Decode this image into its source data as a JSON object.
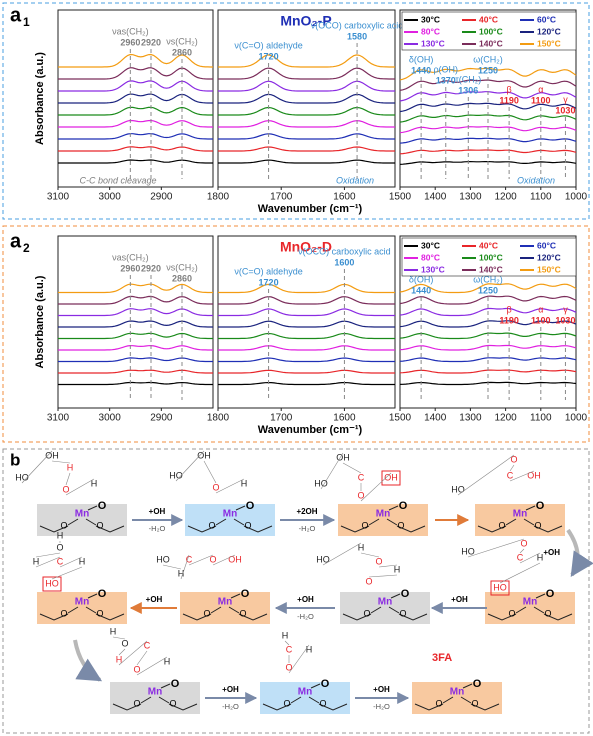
{
  "figure_a1": {
    "label": "a",
    "label_sub": "1",
    "title": "MnO₂-P",
    "y_label": "Absorbance (a.u.)",
    "x_label": "Wavenumber (cm⁻¹)",
    "legend": [
      {
        "name": "30°C",
        "color": "#000000"
      },
      {
        "name": "40°C",
        "color": "#e8262a"
      },
      {
        "name": "60°C",
        "color": "#1f2fb5"
      },
      {
        "name": "80°C",
        "color": "#e020e0"
      },
      {
        "name": "100°C",
        "color": "#1a8a1a"
      },
      {
        "name": "120°C",
        "color": "#1a237e"
      },
      {
        "name": "130°C",
        "color": "#8a2be2"
      },
      {
        "name": "140°C",
        "color": "#7b2d5b"
      },
      {
        "name": "150°C",
        "color": "#f39c12"
      }
    ],
    "panels": [
      {
        "xlim": [
          3100,
          2800
        ],
        "xticks": [
          3100,
          3000,
          2900
        ],
        "note": "C-C bond cleavage",
        "note_color": "#7f7f7f",
        "peaks": [
          {
            "name": "νas(CH₂)",
            "value": 2960,
            "color": "#7f7f7f"
          },
          {
            "value": 2920,
            "color": "#7f7f7f"
          },
          {
            "name": "νs(CH₂)",
            "value": 2860,
            "color": "#7f7f7f"
          }
        ]
      },
      {
        "xlim": [
          1800,
          1520
        ],
        "xticks": [
          1800,
          1700,
          1600
        ],
        "note": "Oxidation",
        "note_color": "#3b8fd0",
        "peaks": [
          {
            "name": "ν(C=O) aldehyde",
            "value": 1720,
            "color": "#3b8fd0"
          },
          {
            "name": "ν(OCO) carboxylic acid",
            "value": 1580,
            "color": "#3b8fd0"
          }
        ]
      },
      {
        "xlim": [
          1500,
          1000
        ],
        "xticks": [
          1500,
          1400,
          1300,
          1200,
          1100,
          1000
        ],
        "note": "Oxidation",
        "note_color": "#3b8fd0",
        "peaks": [
          {
            "name": "δ(OH)",
            "value": 1440,
            "color": "#3b8fd0"
          },
          {
            "name": "ρ(OH)",
            "value": 1370,
            "color": "#3b8fd0"
          },
          {
            "name": "τ(CH₂)",
            "value": 1306,
            "color": "#3b8fd0"
          },
          {
            "name": "ω(CH₂)",
            "value": 1250,
            "color": "#3b8fd0"
          },
          {
            "name": "β",
            "value": 1190,
            "color": "#e8262a"
          },
          {
            "name": "α",
            "value": 1100,
            "color": "#e8262a"
          },
          {
            "name": "γ",
            "value": 1030,
            "color": "#e8262a"
          }
        ]
      }
    ]
  },
  "figure_a2": {
    "label": "a",
    "label_sub": "2",
    "title": "MnO₂-D",
    "y_label": "Absorbance (a.u.)",
    "x_label": "Wavenumber (cm⁻¹)",
    "legend": [
      {
        "name": "30°C",
        "color": "#000000"
      },
      {
        "name": "40°C",
        "color": "#e8262a"
      },
      {
        "name": "60°C",
        "color": "#1f2fb5"
      },
      {
        "name": "80°C",
        "color": "#e020e0"
      },
      {
        "name": "100°C",
        "color": "#1a8a1a"
      },
      {
        "name": "120°C",
        "color": "#1a237e"
      },
      {
        "name": "130°C",
        "color": "#8a2be2"
      },
      {
        "name": "140°C",
        "color": "#7b2d5b"
      },
      {
        "name": "150°C",
        "color": "#f39c12"
      }
    ],
    "panels": [
      {
        "xlim": [
          3100,
          2800
        ],
        "xticks": [
          3100,
          3000,
          2900
        ],
        "peaks": [
          {
            "name": "νas(CH₂)",
            "value": 2960,
            "color": "#7f7f7f"
          },
          {
            "value": 2920,
            "color": "#7f7f7f"
          },
          {
            "name": "νs(CH₂)",
            "value": 2860,
            "color": "#7f7f7f"
          }
        ]
      },
      {
        "xlim": [
          1800,
          1520
        ],
        "xticks": [
          1800,
          1700,
          1600
        ],
        "peaks": [
          {
            "name": "ν(C=O) aldehyde",
            "value": 1720,
            "color": "#3b8fd0"
          },
          {
            "name": "ν(OCO) carboxylic acid",
            "value": 1600,
            "color": "#3b8fd0"
          }
        ]
      },
      {
        "xlim": [
          1500,
          1000
        ],
        "xticks": [
          1500,
          1400,
          1300,
          1200,
          1100,
          1000
        ],
        "peaks": [
          {
            "name": "δ(OH)",
            "value": 1440,
            "color": "#3b8fd0"
          },
          {
            "name": "ω(CH₂)",
            "value": 1250,
            "color": "#3b8fd0"
          },
          {
            "name": "β",
            "value": 1190,
            "color": "#e8262a"
          },
          {
            "name": "α",
            "value": 1100,
            "color": "#e8262a"
          },
          {
            "name": "γ",
            "value": 1030,
            "color": "#e8262a"
          }
        ]
      }
    ]
  },
  "figure_b": {
    "label": "b",
    "product": "3FA",
    "intermediates": [
      {
        "color": "#d9d9d9",
        "metal": "Mn",
        "oxo": "O",
        "surface": [
          "O",
          "O"
        ],
        "atoms": [
          "HO",
          "OH",
          "H",
          "O",
          "H"
        ]
      },
      {
        "color": "#bfe0f7",
        "metal": "Mn",
        "oxo": "O",
        "surface": [
          "O",
          "O"
        ],
        "atoms": [
          "HO",
          "OH",
          "O",
          "H"
        ]
      },
      {
        "color": "#f8c9a0",
        "metal": "Mn",
        "oxo": "O",
        "surface": [
          "O",
          "O"
        ],
        "atoms": [
          "HO",
          "OH",
          "C",
          "O",
          "OH"
        ]
      },
      {
        "color": "#f8c9a0",
        "metal": "Mn",
        "oxo": "O",
        "surface": [
          "O",
          "O"
        ],
        "atoms": [
          "HO",
          "O",
          "C",
          "OH"
        ]
      },
      {
        "color": "#f8c9a0",
        "metal": "Mn",
        "oxo": "O",
        "surface": [
          "O",
          "O"
        ],
        "atoms": [
          "HO",
          "O",
          "C",
          "H",
          "HO"
        ]
      },
      {
        "color": "#d9d9d9",
        "metal": "Mn",
        "oxo": "O",
        "surface": [
          "O",
          "O"
        ],
        "atoms": [
          "HO",
          "H",
          "O",
          "H",
          "O"
        ]
      },
      {
        "color": "#f8c9a0",
        "metal": "Mn",
        "oxo": "O",
        "surface": [
          "O",
          "O"
        ],
        "atoms": [
          "HO",
          "H",
          "C",
          "O",
          "OH"
        ]
      },
      {
        "color": "#f8c9a0",
        "metal": "Mn",
        "oxo": "O",
        "surface": [
          "O",
          "O"
        ],
        "atoms": [
          "H",
          "O",
          "H",
          "C",
          "H",
          "HO"
        ]
      },
      {
        "color": "#d9d9d9",
        "metal": "Mn",
        "oxo": "O",
        "surface": [
          "O",
          "O"
        ],
        "atoms": [
          "H",
          "O",
          "H",
          "C",
          "O",
          "H"
        ]
      },
      {
        "color": "#bfe0f7",
        "metal": "Mn",
        "oxo": "O",
        "surface": [
          "O",
          "O"
        ],
        "atoms": [
          "H",
          "C",
          "O",
          "H"
        ]
      },
      {
        "color": "#f8c9a0",
        "metal": "Mn",
        "oxo": "O",
        "surface": [
          "O",
          "O"
        ]
      }
    ],
    "steps": [
      {
        "reagent": "+OH",
        "byproduct": "-H₂O"
      },
      {
        "reagent": "+2OH",
        "byproduct": "-H₂O"
      },
      {
        "reagent": "+OH"
      },
      {
        "reagent": "+OH"
      },
      {
        "reagent": "+OH",
        "byproduct": "-H₂O"
      },
      {
        "reagent": "+OH"
      },
      {
        "reagent": "+OH",
        "byproduct": "-H₂O"
      },
      {
        "reagent": "+OH",
        "byproduct": "-H₂O"
      }
    ]
  }
}
